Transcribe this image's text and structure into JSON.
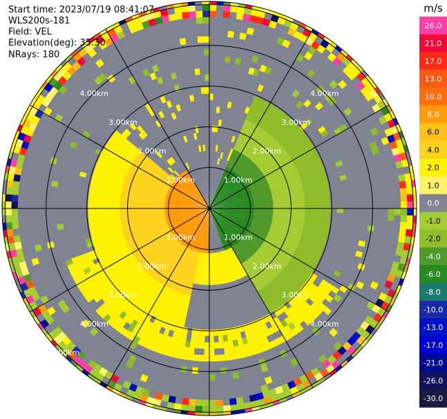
{
  "header": {
    "start_time": "Start time: 2023/07/19 08:41:07",
    "instrument": "WLS200s-181",
    "field": "Field: VEL",
    "elevation": "Elevation(deg): 35.30",
    "nrays": "NRays: 180"
  },
  "range_rings": {
    "labels": [
      "1.00km",
      "2.00km",
      "3.00km",
      "4.00km",
      "5.00km"
    ]
  },
  "colorbar": {
    "unit": "m/s",
    "bins": [
      {
        "label": "26.0",
        "color": "#ff3fa8"
      },
      {
        "label": "21.0",
        "color": "#ee0a3a"
      },
      {
        "label": "17.0",
        "color": "#ff2a1a"
      },
      {
        "label": "13.0",
        "color": "#ff5a14"
      },
      {
        "label": "10.0",
        "color": "#ff6f12"
      },
      {
        "label": "8.0",
        "color": "#ff9a0a"
      },
      {
        "label": "6.0",
        "color": "#ffc21a"
      },
      {
        "label": "4.0",
        "color": "#ffd21e"
      },
      {
        "label": "2.0",
        "color": "#fff200"
      },
      {
        "label": "1.0",
        "color": "#fff36a"
      },
      {
        "label": "0.0",
        "color": "#7f8392"
      },
      {
        "label": "-1.0",
        "color": "#a6cc34"
      },
      {
        "label": "-2.0",
        "color": "#8fbd2a"
      },
      {
        "label": "-4.0",
        "color": "#4f9a2a"
      },
      {
        "label": "-6.0",
        "color": "#2a8a22"
      },
      {
        "label": "-8.0",
        "color": "#1a7a6f"
      },
      {
        "label": "-10.0",
        "color": "#1a2aa8"
      },
      {
        "label": "-13.0",
        "color": "#0012c8"
      },
      {
        "label": "-17.0",
        "color": "#0000d6"
      },
      {
        "label": "-21.0",
        "color": "#000a90"
      },
      {
        "label": "-26.0",
        "color": "#11125a"
      },
      {
        "label": "-30.0",
        "color": "#1b1a40"
      }
    ]
  }
}
